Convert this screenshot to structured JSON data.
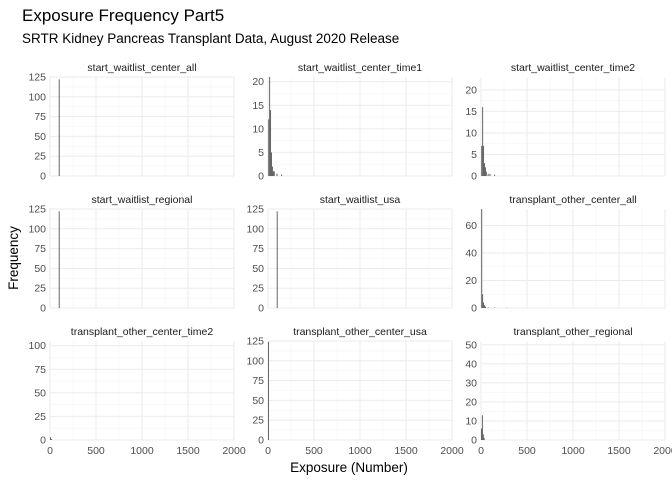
{
  "chart_data": {
    "type": "bar",
    "title": "Exposure Frequency Part5",
    "subtitle": "SRTR Kidney Pancreas Transplant Data, August 2020 Release",
    "xlabel": "Exposure (Number)",
    "ylabel": "Frequency",
    "xlim": [
      0,
      2000
    ],
    "x_ticks": [
      0,
      500,
      1000,
      1500,
      2000
    ],
    "grid": true,
    "bar_color": "#595959",
    "panels": [
      {
        "name": "start_waitlist_center_all",
        "ylim": [
          0,
          125
        ],
        "y_ticks": [
          0,
          25,
          50,
          75,
          100,
          125
        ],
        "show_x_ticks": false,
        "bins": [
          [
            100,
            122
          ]
        ]
      },
      {
        "name": "start_waitlist_center_time1",
        "ylim": [
          0,
          21
        ],
        "y_ticks": [
          0,
          5,
          10,
          15,
          20
        ],
        "show_x_ticks": false,
        "bins": [
          [
            8,
            12
          ],
          [
            18,
            21
          ],
          [
            28,
            14
          ],
          [
            38,
            5
          ],
          [
            48,
            2
          ],
          [
            58,
            1
          ],
          [
            68,
            1
          ],
          [
            98,
            0.5
          ],
          [
            148,
            0.3
          ]
        ]
      },
      {
        "name": "start_waitlist_center_time2",
        "ylim": [
          0,
          23
        ],
        "y_ticks": [
          0,
          5,
          10,
          15,
          20
        ],
        "show_x_ticks": false,
        "bins": [
          [
            8,
            7
          ],
          [
            18,
            16
          ],
          [
            28,
            7
          ],
          [
            38,
            3
          ],
          [
            48,
            2
          ],
          [
            58,
            1
          ],
          [
            78,
            0.5
          ],
          [
            98,
            0.5
          ],
          [
            148,
            0.3
          ]
        ]
      },
      {
        "name": "start_waitlist_regional",
        "ylim": [
          0,
          125
        ],
        "y_ticks": [
          0,
          25,
          50,
          75,
          100,
          125
        ],
        "show_x_ticks": false,
        "bins": [
          [
            100,
            122
          ]
        ]
      },
      {
        "name": "start_waitlist_usa",
        "ylim": [
          0,
          125
        ],
        "y_ticks": [
          0,
          25,
          50,
          75,
          100,
          125
        ],
        "show_x_ticks": false,
        "bins": [
          [
            100,
            122
          ]
        ]
      },
      {
        "name": "transplant_other_center_all",
        "ylim": [
          0,
          72
        ],
        "y_ticks": [
          0,
          20,
          40,
          60
        ],
        "show_x_ticks": false,
        "bins": [
          [
            8,
            72
          ],
          [
            18,
            10
          ],
          [
            28,
            4
          ],
          [
            38,
            2
          ],
          [
            48,
            1
          ],
          [
            78,
            0.5
          ],
          [
            148,
            0.3
          ],
          [
            278,
            0.2
          ]
        ]
      },
      {
        "name": "transplant_other_center_time2",
        "ylim": [
          0,
          105
        ],
        "y_ticks": [
          0,
          25,
          50,
          75,
          100
        ],
        "show_x_ticks": true,
        "bins": [
          [
            5,
            3
          ],
          [
            15,
            1
          ]
        ]
      },
      {
        "name": "transplant_other_center_usa",
        "ylim": [
          0,
          125
        ],
        "y_ticks": [
          0,
          25,
          50,
          75,
          100,
          125
        ],
        "show_x_ticks": true,
        "bins": [
          [
            5,
            124
          ]
        ]
      },
      {
        "name": "transplant_other_regional",
        "ylim": [
          0,
          52
        ],
        "y_ticks": [
          0,
          10,
          20,
          30,
          40,
          50
        ],
        "show_x_ticks": true,
        "bins": [
          [
            5,
            6
          ],
          [
            15,
            13
          ],
          [
            25,
            3
          ],
          [
            35,
            1
          ]
        ]
      }
    ]
  }
}
